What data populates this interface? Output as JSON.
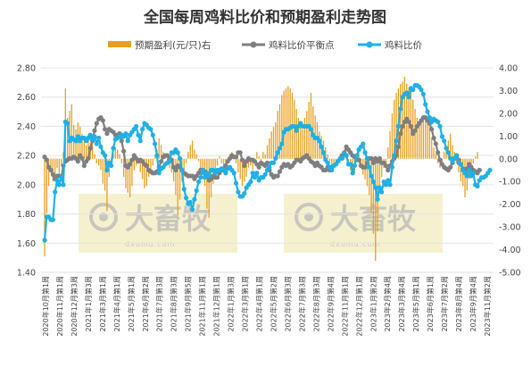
{
  "chart_data": {
    "type": "bar+line",
    "title": "全国每周鸡料比价和预期盈利走势图",
    "legend": [
      "预期盈利(元/只)右",
      "鸡料比价平衡点",
      "鸡料比价"
    ],
    "legend_position": "top",
    "colors": {
      "profit": "#e8a020",
      "breakeven": "#7f7f7f",
      "ratio": "#1fb0e5"
    },
    "y_left": {
      "min": 1.4,
      "max": 2.8,
      "ticks": [
        "1.40",
        "1.60",
        "1.80",
        "2.00",
        "2.20",
        "2.40",
        "2.60",
        "2.80"
      ]
    },
    "y_right": {
      "min": -5.0,
      "max": 4.0,
      "ticks": [
        "4.00",
        "3.00",
        "2.00",
        "1.00",
        "0.00",
        "-1.00",
        "-2.00",
        "-3.00",
        "-4.00",
        "-5.00"
      ]
    },
    "grid": true,
    "x_tick_labels": [
      "2020年10月第1周",
      "2020年11月第1周",
      "2020年12月第3周",
      "2021年1月第3周",
      "2021年3月第1周",
      "2021年4月第1周",
      "2021年5月第1周",
      "2021年6月第2周",
      "2021年7月第3周",
      "2021年8月第3周",
      "2021年9月第5周",
      "2021年11月第1周",
      "2021年12月第1周",
      "2022年1月第3周",
      "2022年3月第1周",
      "2022年4月第1周",
      "2022年5月第2周",
      "2022年6月第3周",
      "2022年7月第3周",
      "2022年8月第3周",
      "2022年9月第4周",
      "2022年11月第1周",
      "2022年12月第1周",
      "2023年1月第2周",
      "2023年2月第4周",
      "2023年3月第4周",
      "2023年5月第1周",
      "2023年6月第1周",
      "2023年7月第2周",
      "2023年8月第4周",
      "2023年9月第4周",
      "2023年11月第2周"
    ],
    "ratio": [
      1.62,
      1.78,
      1.78,
      1.76,
      1.76,
      1.95,
      2.03,
      2.0,
      2.05,
      2.0,
      2.43,
      2.42,
      2.3,
      2.32,
      2.31,
      2.3,
      2.33,
      2.3,
      2.32,
      2.32,
      2.3,
      2.32,
      2.34,
      2.31,
      2.33,
      2.28,
      2.32,
      2.26,
      2.22,
      2.2,
      2.1,
      2.15,
      2.13,
      2.25,
      2.31,
      2.32,
      2.33,
      2.34,
      2.33,
      2.35,
      2.3,
      2.34,
      2.36,
      2.38,
      2.4,
      2.34,
      2.3,
      2.38,
      2.42,
      2.41,
      2.39,
      2.38,
      2.34,
      2.28,
      2.2,
      2.08,
      2.11,
      2.12,
      2.14,
      2.15,
      2.16,
      2.22,
      2.22,
      2.24,
      2.22,
      2.18,
      2.1,
      1.97,
      1.91,
      1.87,
      1.88,
      1.83,
      1.9,
      1.96,
      2.02,
      2.05,
      2.1,
      2.05,
      2.08,
      2.06,
      2.1,
      2.1,
      2.08,
      2.1,
      2.1,
      2.11,
      2.1,
      2.08,
      2.11,
      2.12,
      2.1,
      2.08,
      2.01,
      1.95,
      1.92,
      1.92,
      1.94,
      1.98,
      2.0,
      2.02,
      2.08,
      2.05,
      2.08,
      2.03,
      2.05,
      2.05,
      2.07,
      2.1,
      2.12,
      2.15,
      2.15,
      2.18,
      2.22,
      2.25,
      2.28,
      2.36,
      2.38,
      2.38,
      2.39,
      2.4,
      2.4,
      2.37,
      2.4,
      2.42,
      2.4,
      2.4,
      2.4,
      2.4,
      2.38,
      2.34,
      2.32,
      2.32,
      2.3,
      2.26,
      2.22,
      2.17,
      2.15,
      2.12,
      2.1,
      2.13,
      2.14,
      2.16,
      2.18,
      2.18,
      2.21,
      2.2,
      2.14,
      2.14,
      2.08,
      2.13,
      2.2,
      2.24,
      2.26,
      2.28,
      2.22,
      2.18,
      2.12,
      2.06,
      2.02,
      1.98,
      1.9,
      1.98,
      1.95,
      2.02,
      2.0,
      2.03,
      2.0,
      2.12,
      2.2,
      2.3,
      2.4,
      2.52,
      2.6,
      2.62,
      2.63,
      2.6,
      2.66,
      2.65,
      2.68,
      2.68,
      2.67,
      2.65,
      2.62,
      2.55,
      2.5,
      2.46,
      2.43,
      2.45,
      2.44,
      2.43,
      2.4,
      2.33,
      2.3,
      2.25,
      2.22,
      2.18,
      2.16,
      2.18,
      2.2,
      2.15,
      2.14,
      2.1,
      2.08,
      2.06,
      2.1,
      2.06,
      2.08,
      2.0,
      1.99,
      2.03,
      2.05,
      2.05,
      2.06,
      2.08,
      2.1
    ],
    "breakeven": [
      2.19,
      2.17,
      2.12,
      2.1,
      2.07,
      2.04,
      2.06,
      2.06,
      2.05,
      2.13,
      2.16,
      2.17,
      2.18,
      2.18,
      2.19,
      2.18,
      2.16,
      2.2,
      2.18,
      2.13,
      2.16,
      2.18,
      2.25,
      2.3,
      2.37,
      2.42,
      2.45,
      2.46,
      2.44,
      2.38,
      2.35,
      2.38,
      2.37,
      2.36,
      2.34,
      2.34,
      2.35,
      2.3,
      2.23,
      2.13,
      2.12,
      2.14,
      2.17,
      2.2,
      2.18,
      2.16,
      2.17,
      2.16,
      2.14,
      2.13,
      2.1,
      2.09,
      2.08,
      2.08,
      2.09,
      2.12,
      2.16,
      2.19,
      2.2,
      2.2,
      2.18,
      2.17,
      2.12,
      2.1,
      2.13,
      2.12,
      2.1,
      2.08,
      2.07,
      2.06,
      2.06,
      2.06,
      2.04,
      2.06,
      2.08,
      2.1,
      2.1,
      2.09,
      2.06,
      2.03,
      2.04,
      2.06,
      2.05,
      2.05,
      2.08,
      2.1,
      2.11,
      2.13,
      2.16,
      2.18,
      2.2,
      2.19,
      2.19,
      2.22,
      2.22,
      2.17,
      2.13,
      2.16,
      2.18,
      2.17,
      2.17,
      2.16,
      2.14,
      2.12,
      2.15,
      2.14,
      2.13,
      2.15,
      2.1,
      2.07,
      2.05,
      2.06,
      2.06,
      2.09,
      2.12,
      2.14,
      2.13,
      2.14,
      2.12,
      2.13,
      2.15,
      2.17,
      2.17,
      2.16,
      2.18,
      2.19,
      2.2,
      2.18,
      2.16,
      2.15,
      2.13,
      2.15,
      2.13,
      2.12,
      2.1,
      2.1,
      2.12,
      2.1,
      2.12,
      2.13,
      2.14,
      2.16,
      2.18,
      2.2,
      2.22,
      2.26,
      2.24,
      2.22,
      2.2,
      2.19,
      2.17,
      2.17,
      2.13,
      2.12,
      2.12,
      2.15,
      2.18,
      2.18,
      2.15,
      2.18,
      2.16,
      2.18,
      2.15,
      2.15,
      2.13,
      2.1,
      2.13,
      2.16,
      2.18,
      2.2,
      2.26,
      2.35,
      2.4,
      2.43,
      2.45,
      2.43,
      2.4,
      2.35,
      2.37,
      2.4,
      2.42,
      2.44,
      2.46,
      2.46,
      2.44,
      2.42,
      2.38,
      2.32,
      2.28,
      2.22,
      2.17,
      2.14,
      2.12,
      2.11,
      2.1,
      2.12,
      2.15,
      2.18,
      2.2,
      2.17,
      2.14,
      2.11,
      2.1,
      2.11,
      2.14,
      2.12,
      2.1,
      2.09,
      2.08,
      2.1
    ],
    "profit": [
      -4.3,
      -2.4,
      -1.2,
      -0.5,
      -1.0,
      -0.8,
      -0.4,
      -0.7,
      -0.3,
      0.3,
      3.1,
      1.8,
      2.1,
      2.4,
      1.5,
      1.3,
      1.6,
      1.4,
      1.1,
      1.0,
      0.6,
      1.1,
      0.7,
      0.9,
      0.2,
      -0.2,
      -0.3,
      -0.5,
      -1.1,
      -1.4,
      -2.3,
      -0.8,
      -0.4,
      0.2,
      0.5,
      0.4,
      0.2,
      -0.2,
      -0.8,
      -1.3,
      -1.5,
      -1.7,
      -1.2,
      -0.5,
      -0.3,
      -0.2,
      -0.6,
      -0.9,
      -1.3,
      -1.2,
      -0.8,
      -0.5,
      -0.3,
      0.1,
      0.4,
      0.9,
      0.6,
      0.3,
      0.2,
      -0.1,
      -0.4,
      -0.6,
      -1.0,
      -1.6,
      -2.5,
      -1.8,
      -1.0,
      -0.5,
      -0.2,
      0.3,
      0.6,
      0.8,
      0.4,
      0.2,
      -0.1,
      -0.4,
      -0.7,
      -1.2,
      -2.2,
      -2.6,
      -1.7,
      -1.1,
      -0.6,
      -0.3,
      0.1,
      -0.2,
      -0.5,
      -0.3,
      -0.1,
      0.2,
      0.3,
      0.1,
      -0.2,
      -0.6,
      -0.9,
      -1.2,
      -1.0,
      -0.8,
      -0.4,
      -0.3,
      -0.5,
      -0.2,
      0.3,
      0.1,
      -0.1,
      0.3,
      0.2,
      0.6,
      0.9,
      1.2,
      1.4,
      1.6,
      2.1,
      2.4,
      2.8,
      3.0,
      3.1,
      3.2,
      3.1,
      2.9,
      2.6,
      2.2,
      1.8,
      1.6,
      1.3,
      1.8,
      2.1,
      2.5,
      2.9,
      2.3,
      1.9,
      1.6,
      1.2,
      1.0,
      0.8,
      0.5,
      0.2,
      -0.1,
      -0.3,
      -0.4,
      -0.2,
      -0.1,
      0.2,
      0.1,
      0.3,
      0.1,
      -0.2,
      -0.5,
      -0.7,
      -0.6,
      0.1,
      0.3,
      -0.3,
      -0.7,
      -0.9,
      -1.2,
      -1.6,
      -2.4,
      -3.3,
      -4.5,
      -3.2,
      -1.5,
      -0.8,
      -0.4,
      -0.2,
      0.5,
      1.2,
      2.0,
      2.6,
      2.9,
      3.1,
      3.3,
      3.4,
      3.6,
      3.3,
      3.1,
      3.0,
      2.6,
      2.2,
      1.8,
      1.5,
      1.6,
      1.8,
      1.9,
      1.6,
      1.4,
      0.9,
      0.5,
      0.2,
      -0.2,
      -0.4,
      -0.2,
      0.3,
      0.5,
      0.8,
      1.1,
      0.6,
      0.3,
      -0.2,
      -0.6,
      -1.0,
      -1.2,
      -1.7,
      -1.4,
      -0.9,
      -0.6,
      -0.2,
      0.1,
      0.3
    ]
  },
  "watermark": {
    "brand": "大畜牧",
    "url": "dxumu.com"
  }
}
